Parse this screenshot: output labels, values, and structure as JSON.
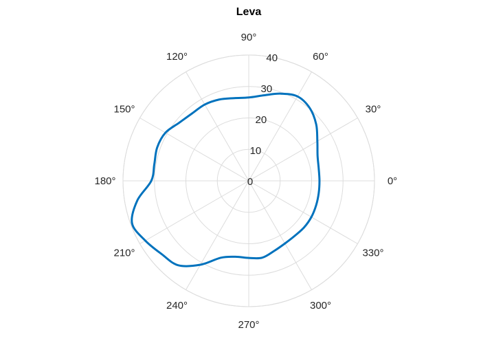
{
  "chart_data": {
    "type": "line",
    "subtype": "polar",
    "title": "Leva",
    "theta_ticks": [
      "0°",
      "30°",
      "60°",
      "90°",
      "120°",
      "150°",
      "180°",
      "210°",
      "240°",
      "270°",
      "300°",
      "330°"
    ],
    "r_ticks": [
      "0",
      "10",
      "20",
      "30",
      "40"
    ],
    "r_range": [
      0,
      40
    ],
    "grid": true,
    "series": [
      {
        "color": "#0072bd",
        "theta_deg": [
          0,
          10,
          20,
          30,
          40,
          50,
          60,
          70,
          80,
          90,
          100,
          110,
          120,
          130,
          140,
          150,
          160,
          170,
          180,
          190,
          200,
          210,
          220,
          230,
          240,
          250,
          260,
          270,
          280,
          290,
          300,
          310,
          320,
          330,
          340,
          350,
          360
        ],
        "r": [
          22.5,
          22.6,
          23.3,
          25.2,
          28.0,
          30.2,
          31.0,
          29.5,
          27.6,
          26.5,
          26.7,
          27.5,
          28.0,
          28.0,
          28.8,
          30.6,
          31.0,
          30.5,
          31.0,
          36.0,
          39.5,
          38.0,
          36.2,
          35.0,
          30.8,
          26.0,
          24.5,
          24.5,
          24.8,
          23.7,
          23.0,
          22.8,
          23.0,
          23.0,
          22.8,
          22.6,
          22.5
        ]
      }
    ]
  }
}
